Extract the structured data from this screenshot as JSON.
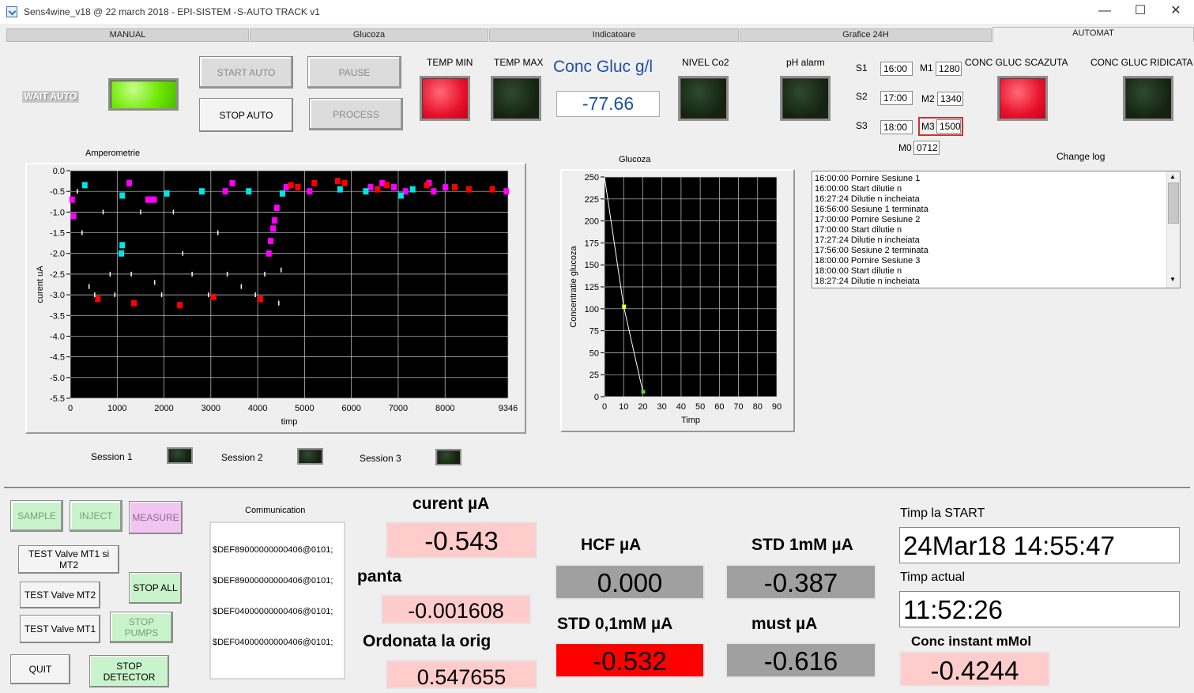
{
  "window": {
    "title_main": "Sens4wine_v18 @ 22 march 2018 - EPI-SISTEM -",
    "title_sub": "S-AUTO TRACK v1",
    "minimize": "—",
    "maximize": "☐",
    "close": "✕"
  },
  "tabs": [
    "MANUAL",
    "Glucoza",
    "Indicatoare",
    "Grafice 24H",
    "AUTOMAT"
  ],
  "controls": {
    "wait_auto": "WAIT AUTO",
    "start_auto": "START AUTO",
    "stop_auto": "STOP AUTO",
    "pause": "PAUSE",
    "process": "PROCESS"
  },
  "indicators": {
    "temp_min": "TEMP MIN",
    "temp_max": "TEMP MAX",
    "conc_gluc_title": "Conc Gluc g/l",
    "conc_gluc_value": "-77.66",
    "nivel_co2": "NIVEL Co2",
    "ph_alarm": "pH alarm",
    "conc_gluc_scazuta": "CONC GLUC SCAZUTA",
    "conc_gluc_ridicata": "CONC GLUC RIDICATA",
    "led_colors": {
      "on_red": "#e8112c",
      "on_green": "#6ee800",
      "off": "#1b2d17"
    }
  },
  "schedule": {
    "s1_label": "S1",
    "s1_value": "16:00",
    "s2_label": "S2",
    "s2_value": "17:00",
    "s3_label": "S3",
    "s3_value": "18:00",
    "m1_label": "M1",
    "m1_value": "1280",
    "m2_label": "M2",
    "m2_value": "1340",
    "m3_label": "M3",
    "m3_value": "1500",
    "m0_label": "M0",
    "m0_value": "0712"
  },
  "change_log": {
    "title": "Change log",
    "lines": [
      "16:00:00 Pornire Sesiune 1",
      "16:00:00 Start dilutie n",
      "16:27:24 Dilutie n incheiata",
      "16:56:00 Sesiune 1 terminata",
      "17:00:00 Pornire Sesiune 2",
      "17:00:00 Start dilutie n",
      "17:27:24 Dilutie n incheiata",
      "17:56:00 Sesiune 2 terminata",
      "18:00:00 Pornire Sesiune 3",
      "18:00:00 Start dilutie n",
      "18:27:24 Dilutie n incheiata"
    ],
    "scroll_up": "▲",
    "scroll_down": "▼"
  },
  "chart_data": [
    {
      "type": "scatter",
      "title": "Amperometrie",
      "xlabel": "timp",
      "ylabel": "curent uA",
      "xlim": [
        0,
        9346
      ],
      "ylim": [
        -5.5,
        0.0
      ],
      "x_ticks": [
        "0",
        "1000",
        "2000",
        "3000",
        "4000",
        "5000",
        "6000",
        "7000",
        "8000",
        "9346"
      ],
      "y_ticks": [
        "0.0",
        "-0.5",
        "-1.0",
        "-1.5",
        "-2.0",
        "-2.5",
        "-3.0",
        "-3.5",
        "-4.0",
        "-4.5",
        "-5.0",
        "-5.5"
      ],
      "grid": true,
      "series": [
        {
          "color": "#ff00ff",
          "points": [
            [
              30,
              -0.7
            ],
            [
              60,
              -1.1
            ],
            [
              1250,
              -0.3
            ],
            [
              1650,
              -0.7
            ],
            [
              1700,
              -0.7
            ],
            [
              1780,
              -0.7
            ],
            [
              3300,
              -0.5
            ],
            [
              3450,
              -0.3
            ],
            [
              4230,
              -2.0
            ],
            [
              4270,
              -1.7
            ],
            [
              4320,
              -1.4
            ],
            [
              4350,
              -1.2
            ],
            [
              4400,
              -0.9
            ],
            [
              4600,
              -0.4
            ],
            [
              5100,
              -0.5
            ],
            [
              6400,
              -0.4
            ],
            [
              6650,
              -0.3
            ],
            [
              6900,
              -0.4
            ],
            [
              7150,
              -0.5
            ],
            [
              7650,
              -0.3
            ],
            [
              7750,
              -0.5
            ],
            [
              8000,
              -0.4
            ],
            [
              9300,
              -0.5
            ]
          ]
        },
        {
          "color": "#00e5e5",
          "points": [
            [
              300,
              -0.35
            ],
            [
              1100,
              -0.6
            ],
            [
              1080,
              -2.0
            ],
            [
              1100,
              -1.8
            ],
            [
              2050,
              -0.55
            ],
            [
              2800,
              -0.5
            ],
            [
              3800,
              -0.5
            ],
            [
              4520,
              -0.55
            ],
            [
              5750,
              -0.45
            ],
            [
              6300,
              -0.5
            ],
            [
              7050,
              -0.6
            ],
            [
              7300,
              -0.45
            ]
          ]
        },
        {
          "color": "#ff0000",
          "points": [
            [
              580,
              -3.1
            ],
            [
              1350,
              -3.2
            ],
            [
              2330,
              -3.25
            ],
            [
              3050,
              -3.05
            ],
            [
              4050,
              -3.1
            ],
            [
              4700,
              -0.35
            ],
            [
              4850,
              -0.4
            ],
            [
              5200,
              -0.3
            ],
            [
              5700,
              -0.25
            ],
            [
              5850,
              -0.3
            ],
            [
              6550,
              -0.45
            ],
            [
              6750,
              -0.35
            ],
            [
              7600,
              -0.35
            ],
            [
              8200,
              -0.4
            ],
            [
              8500,
              -0.45
            ],
            [
              9000,
              -0.45
            ]
          ]
        },
        {
          "color": "#ffffff",
          "points": [
            [
              150,
              -0.5
            ],
            [
              250,
              -1.5
            ],
            [
              400,
              -2.8
            ],
            [
              520,
              -3.0
            ],
            [
              700,
              -1.0
            ],
            [
              850,
              -2.5
            ],
            [
              950,
              -3.0
            ],
            [
              1300,
              -2.5
            ],
            [
              1500,
              -1.0
            ],
            [
              1800,
              -2.7
            ],
            [
              1950,
              -3.0
            ],
            [
              2200,
              -1.0
            ],
            [
              2400,
              -2.0
            ],
            [
              2600,
              -2.5
            ],
            [
              2950,
              -3.0
            ],
            [
              3150,
              -1.5
            ],
            [
              3350,
              -2.5
            ],
            [
              3650,
              -2.8
            ],
            [
              3950,
              -3.0
            ],
            [
              4150,
              -2.5
            ],
            [
              4450,
              -3.2
            ],
            [
              4500,
              -2.4
            ]
          ]
        }
      ]
    },
    {
      "type": "line",
      "title": "Glucoza",
      "xlabel": "Timp",
      "ylabel": "Concentratie glucoza",
      "xlim": [
        0,
        90
      ],
      "ylim": [
        0,
        250
      ],
      "x_ticks": [
        "0",
        "10",
        "20",
        "30",
        "40",
        "50",
        "60",
        "70",
        "80",
        "90"
      ],
      "y_ticks": [
        "250",
        "225",
        "200",
        "175",
        "150",
        "125",
        "100",
        "75",
        "50",
        "25",
        "0"
      ],
      "grid": true,
      "series": [
        {
          "color": "#ffffff",
          "x": [
            0,
            10,
            20
          ],
          "y": [
            250,
            103,
            6
          ]
        }
      ],
      "markers": [
        {
          "color": "#ffff00",
          "x": 10,
          "y": 103
        },
        {
          "color": "#66cc33",
          "x": 20,
          "y": 6
        }
      ]
    }
  ],
  "sessions": [
    "Session 1",
    "Session 2",
    "Session 3"
  ],
  "bottom": {
    "sample": "SAMPLE",
    "inject": "INJECT",
    "measure": "MEASURE",
    "test_valve_mt1_mt2": "TEST Valve MT1 si MT2",
    "test_valve_mt2": "TEST Valve MT2",
    "test_valve_mt1": "TEST Valve MT1",
    "stop_all": "STOP ALL",
    "stop_pumps": "STOP PUMPS",
    "quit": "QUIT",
    "stop_detector": "STOP DETECTOR",
    "communication_title": "Communication",
    "communication_lines": [
      "$DEF89000000000406@0101;",
      "$DEF89000000000406@0101;",
      "$DEF04000000000406@0101;",
      "$DEF04000000000406@0101;"
    ]
  },
  "measurements": {
    "curent_title": "curent µA",
    "curent_value": "-0.543",
    "panta_title": "panta",
    "panta_value": "-0.001608",
    "ordonata_title": "Ordonata la orig",
    "ordonata_value": "0.547655",
    "hcf_title": "HCF µA",
    "hcf_value": "0.000",
    "std1_title": "STD 1mM µA",
    "std1_value": "-0.387",
    "std01_title": "STD 0,1mM µA",
    "std01_value": "-0.532",
    "must_title": "must µA",
    "must_value": "-0.616",
    "timp_start_title": "Timp la START",
    "timp_start_value": "24Mar18 14:55:47",
    "timp_actual_title": "Timp actual",
    "timp_actual_value": "11:52:26",
    "conc_instant_title": "Conc instant mMol",
    "conc_instant_value": "-0.4244",
    "colors": {
      "pink": "#ffcccc",
      "gray": "#a0a0a0",
      "red": "#ff0000",
      "white": "#ffffff"
    }
  }
}
